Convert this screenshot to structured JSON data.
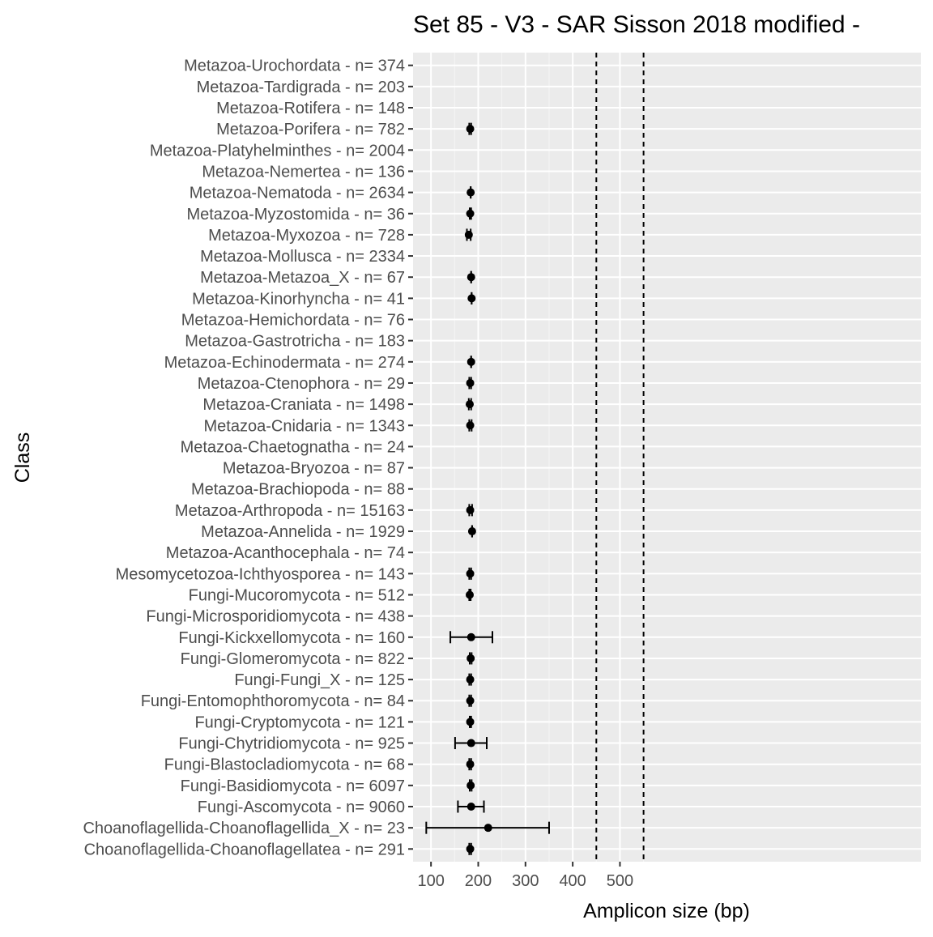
{
  "chart_data": {
    "type": "errorbar",
    "title": "Set 85 - V3 - SAR Sisson 2018 modified -",
    "xlabel": "Amplicon size (bp)",
    "ylabel": "Class",
    "xlim": [
      62,
      1137
    ],
    "x_ticks": [
      100,
      200,
      300,
      400,
      500
    ],
    "x_tick_labels": [
      "100",
      "200",
      "300",
      "400",
      "500"
    ],
    "grid": true,
    "reference_lines": [
      450,
      550
    ],
    "categories": [
      "Metazoa-Urochordata - n= 374",
      "Metazoa-Tardigrada - n= 203",
      "Metazoa-Rotifera - n= 148",
      "Metazoa-Porifera - n= 782",
      "Metazoa-Platyhelminthes - n= 2004",
      "Metazoa-Nemertea - n= 136",
      "Metazoa-Nematoda - n= 2634",
      "Metazoa-Myzostomida - n= 36",
      "Metazoa-Myxozoa - n= 728",
      "Metazoa-Mollusca - n= 2334",
      "Metazoa-Metazoa_X - n= 67",
      "Metazoa-Kinorhyncha - n= 41",
      "Metazoa-Hemichordata - n= 76",
      "Metazoa-Gastrotricha - n= 183",
      "Metazoa-Echinodermata - n= 274",
      "Metazoa-Ctenophora - n= 29",
      "Metazoa-Craniata - n= 1498",
      "Metazoa-Cnidaria - n= 1343",
      "Metazoa-Chaetognatha - n= 24",
      "Metazoa-Bryozoa - n= 87",
      "Metazoa-Brachiopoda - n= 88",
      "Metazoa-Arthropoda - n= 15163",
      "Metazoa-Annelida - n= 1929",
      "Metazoa-Acanthocephala - n= 74",
      "Mesomycetozoa-Ichthyosporea - n= 143",
      "Fungi-Mucoromycota - n= 512",
      "Fungi-Microsporidiomycota - n= 438",
      "Fungi-Kickxellomycota - n= 160",
      "Fungi-Glomeromycota - n= 822",
      "Fungi-Fungi_X - n= 125",
      "Fungi-Entomophthoromycota - n= 84",
      "Fungi-Cryptomycota - n= 121",
      "Fungi-Chytridiomycota - n= 925",
      "Fungi-Blastocladiomycota - n= 68",
      "Fungi-Basidiomycota - n= 6097",
      "Fungi-Ascomycota - n= 9060",
      "Choanoflagellida-Choanoflagellida_X - n= 23",
      "Choanoflagellida-Choanoflagellatea - n= 291"
    ],
    "points": [
      null,
      null,
      null,
      {
        "mean": 183,
        "min": 181,
        "max": 185
      },
      null,
      null,
      {
        "mean": 184,
        "min": 184,
        "max": 184
      },
      {
        "mean": 183,
        "min": 182,
        "max": 185
      },
      {
        "mean": 180,
        "min": 176,
        "max": 184
      },
      null,
      {
        "mean": 185,
        "min": 185,
        "max": 185
      },
      {
        "mean": 186,
        "min": 186,
        "max": 186
      },
      null,
      null,
      {
        "mean": 185,
        "min": 185,
        "max": 185
      },
      {
        "mean": 183,
        "min": 181,
        "max": 185
      },
      {
        "mean": 182,
        "min": 180,
        "max": 185
      },
      {
        "mean": 183,
        "min": 181,
        "max": 186
      },
      null,
      null,
      null,
      {
        "mean": 183,
        "min": 181,
        "max": 187
      },
      {
        "mean": 187,
        "min": 187,
        "max": 187
      },
      null,
      {
        "mean": 183,
        "min": 181,
        "max": 185
      },
      {
        "mean": 182,
        "min": 181,
        "max": 184
      },
      null,
      {
        "mean": 185,
        "min": 141,
        "max": 230
      },
      {
        "mean": 184,
        "min": 182,
        "max": 186
      },
      {
        "mean": 183,
        "min": 181,
        "max": 185
      },
      {
        "mean": 183,
        "min": 181,
        "max": 185
      },
      {
        "mean": 183,
        "min": 182,
        "max": 185
      },
      {
        "mean": 185,
        "min": 151,
        "max": 218
      },
      {
        "mean": 183,
        "min": 181,
        "max": 185
      },
      {
        "mean": 184,
        "min": 182,
        "max": 186
      },
      {
        "mean": 185,
        "min": 157,
        "max": 212
      },
      {
        "mean": 221,
        "min": 90,
        "max": 350
      },
      {
        "mean": 183,
        "min": 181,
        "max": 185
      }
    ],
    "colors": {
      "panel_background": "#ebebeb",
      "grid_major": "#ffffff",
      "grid_minor": "#f5f5f5",
      "point": "#000000",
      "tick_label": "#4d4d4d",
      "axis_tick": "#333333",
      "reference_line": "#000000"
    }
  }
}
